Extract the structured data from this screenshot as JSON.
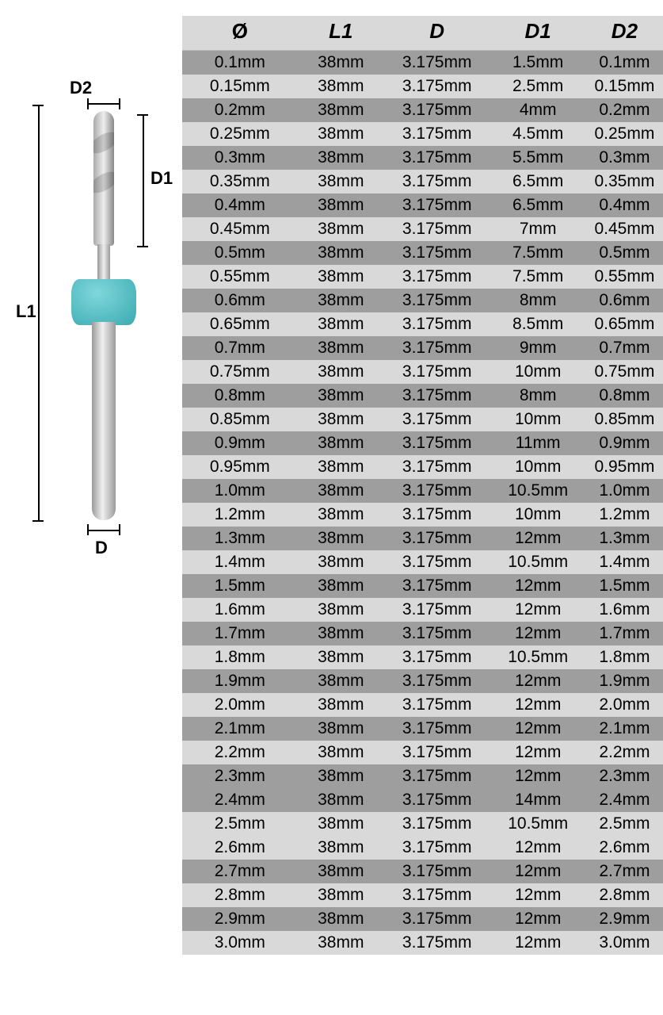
{
  "diagram": {
    "labels": {
      "L1": "L1",
      "D1": "D1",
      "D2": "D2",
      "D": "D"
    }
  },
  "table": {
    "columns": [
      "Ø",
      "L1",
      "D",
      "D1",
      "D2"
    ],
    "col_widths_pct": [
      24,
      18,
      22,
      20,
      16
    ],
    "header_bg": "#d9d9d9",
    "row_bg_dark": "#9e9e9e",
    "row_bg_light": "#d9d9d9",
    "header_fontsize": 26,
    "cell_fontsize": 21,
    "rows": [
      {
        "diam": "0.1mm",
        "L1": "38mm",
        "D": "3.175mm",
        "D1": "1.5mm",
        "D2": "0.1mm",
        "shade": "dark"
      },
      {
        "diam": "0.15mm",
        "L1": "38mm",
        "D": "3.175mm",
        "D1": "2.5mm",
        "D2": "0.15mm",
        "shade": "light"
      },
      {
        "diam": "0.2mm",
        "L1": "38mm",
        "D": "3.175mm",
        "D1": "4mm",
        "D2": "0.2mm",
        "shade": "dark"
      },
      {
        "diam": "0.25mm",
        "L1": "38mm",
        "D": "3.175mm",
        "D1": "4.5mm",
        "D2": "0.25mm",
        "shade": "light"
      },
      {
        "diam": "0.3mm",
        "L1": "38mm",
        "D": "3.175mm",
        "D1": "5.5mm",
        "D2": "0.3mm",
        "shade": "dark"
      },
      {
        "diam": "0.35mm",
        "L1": "38mm",
        "D": "3.175mm",
        "D1": "6.5mm",
        "D2": "0.35mm",
        "shade": "light"
      },
      {
        "diam": "0.4mm",
        "L1": "38mm",
        "D": "3.175mm",
        "D1": "6.5mm",
        "D2": "0.4mm",
        "shade": "dark"
      },
      {
        "diam": "0.45mm",
        "L1": "38mm",
        "D": "3.175mm",
        "D1": "7mm",
        "D2": "0.45mm",
        "shade": "light"
      },
      {
        "diam": "0.5mm",
        "L1": "38mm",
        "D": "3.175mm",
        "D1": "7.5mm",
        "D2": "0.5mm",
        "shade": "dark"
      },
      {
        "diam": "0.55mm",
        "L1": "38mm",
        "D": "3.175mm",
        "D1": "7.5mm",
        "D2": "0.55mm",
        "shade": "light"
      },
      {
        "diam": "0.6mm",
        "L1": "38mm",
        "D": "3.175mm",
        "D1": "8mm",
        "D2": "0.6mm",
        "shade": "dark"
      },
      {
        "diam": "0.65mm",
        "L1": "38mm",
        "D": "3.175mm",
        "D1": "8.5mm",
        "D2": "0.65mm",
        "shade": "light"
      },
      {
        "diam": "0.7mm",
        "L1": "38mm",
        "D": "3.175mm",
        "D1": "9mm",
        "D2": "0.7mm",
        "shade": "dark"
      },
      {
        "diam": "0.75mm",
        "L1": "38mm",
        "D": "3.175mm",
        "D1": "10mm",
        "D2": "0.75mm",
        "shade": "light"
      },
      {
        "diam": "0.8mm",
        "L1": "38mm",
        "D": "3.175mm",
        "D1": "8mm",
        "D2": "0.8mm",
        "shade": "dark"
      },
      {
        "diam": "0.85mm",
        "L1": "38mm",
        "D": "3.175mm",
        "D1": "10mm",
        "D2": "0.85mm",
        "shade": "light"
      },
      {
        "diam": "0.9mm",
        "L1": "38mm",
        "D": "3.175mm",
        "D1": "11mm",
        "D2": "0.9mm",
        "shade": "dark"
      },
      {
        "diam": "0.95mm",
        "L1": "38mm",
        "D": "3.175mm",
        "D1": "10mm",
        "D2": "0.95mm",
        "shade": "light"
      },
      {
        "diam": "1.0mm",
        "L1": "38mm",
        "D": "3.175mm",
        "D1": "10.5mm",
        "D2": "1.0mm",
        "shade": "dark"
      },
      {
        "diam": "1.2mm",
        "L1": "38mm",
        "D": "3.175mm",
        "D1": "10mm",
        "D2": "1.2mm",
        "shade": "light"
      },
      {
        "diam": "1.3mm",
        "L1": "38mm",
        "D": "3.175mm",
        "D1": "12mm",
        "D2": "1.3mm",
        "shade": "dark"
      },
      {
        "diam": "1.4mm",
        "L1": "38mm",
        "D": "3.175mm",
        "D1": "10.5mm",
        "D2": "1.4mm",
        "shade": "light"
      },
      {
        "diam": "1.5mm",
        "L1": "38mm",
        "D": "3.175mm",
        "D1": "12mm",
        "D2": "1.5mm",
        "shade": "dark"
      },
      {
        "diam": "1.6mm",
        "L1": "38mm",
        "D": "3.175mm",
        "D1": "12mm",
        "D2": "1.6mm",
        "shade": "light"
      },
      {
        "diam": "1.7mm",
        "L1": "38mm",
        "D": "3.175mm",
        "D1": "12mm",
        "D2": "1.7mm",
        "shade": "dark"
      },
      {
        "diam": "1.8mm",
        "L1": "38mm",
        "D": "3.175mm",
        "D1": "10.5mm",
        "D2": "1.8mm",
        "shade": "light"
      },
      {
        "diam": "1.9mm",
        "L1": "38mm",
        "D": "3.175mm",
        "D1": "12mm",
        "D2": "1.9mm",
        "shade": "dark"
      },
      {
        "diam": "2.0mm",
        "L1": "38mm",
        "D": "3.175mm",
        "D1": "12mm",
        "D2": "2.0mm",
        "shade": "light"
      },
      {
        "diam": "2.1mm",
        "L1": "38mm",
        "D": "3.175mm",
        "D1": "12mm",
        "D2": "2.1mm",
        "shade": "dark"
      },
      {
        "diam": "2.2mm",
        "L1": "38mm",
        "D": "3.175mm",
        "D1": "12mm",
        "D2": "2.2mm",
        "shade": "light"
      },
      {
        "diam": "2.3mm",
        "L1": "38mm",
        "D": "3.175mm",
        "D1": "12mm",
        "D2": "2.3mm",
        "shade": "dark"
      },
      {
        "diam": "2.4mm",
        "L1": "38mm",
        "D": "3.175mm",
        "D1": "14mm",
        "D2": "2.4mm",
        "shade": "dark"
      },
      {
        "diam": "2.5mm",
        "L1": "38mm",
        "D": "3.175mm",
        "D1": "10.5mm",
        "D2": "2.5mm",
        "shade": "light"
      },
      {
        "diam": "2.6mm",
        "L1": "38mm",
        "D": "3.175mm",
        "D1": "12mm",
        "D2": "2.6mm",
        "shade": "light"
      },
      {
        "diam": "2.7mm",
        "L1": "38mm",
        "D": "3.175mm",
        "D1": "12mm",
        "D2": "2.7mm",
        "shade": "dark"
      },
      {
        "diam": "2.8mm",
        "L1": "38mm",
        "D": "3.175mm",
        "D1": "12mm",
        "D2": "2.8mm",
        "shade": "light"
      },
      {
        "diam": "2.9mm",
        "L1": "38mm",
        "D": "3.175mm",
        "D1": "12mm",
        "D2": "2.9mm",
        "shade": "dark"
      },
      {
        "diam": "3.0mm",
        "L1": "38mm",
        "D": "3.175mm",
        "D1": "12mm",
        "D2": "3.0mm",
        "shade": "light"
      }
    ]
  }
}
